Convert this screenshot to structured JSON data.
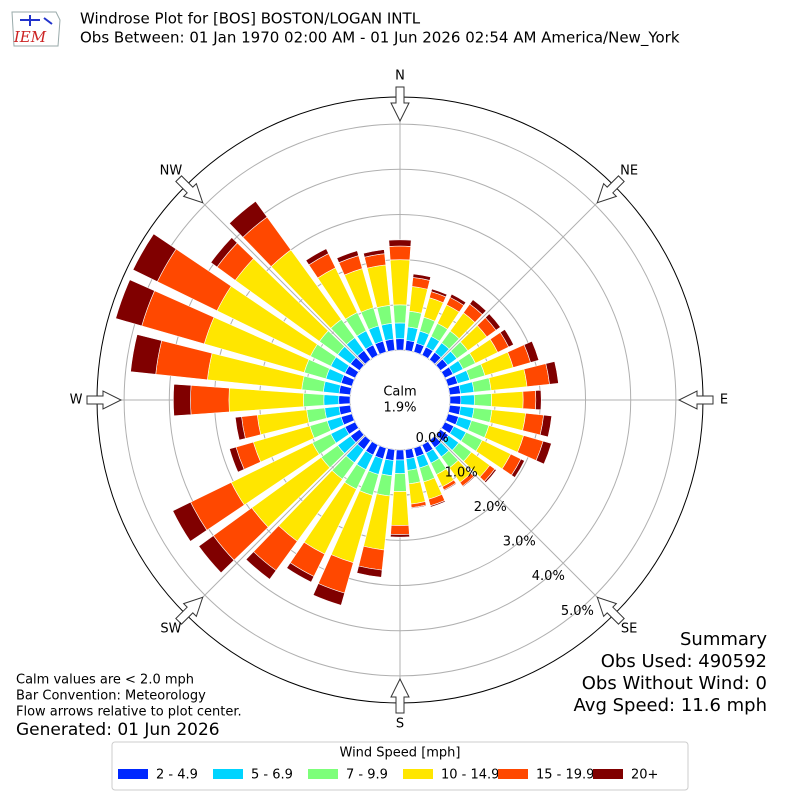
{
  "chart_data": {
    "type": "windrose",
    "title": "Windrose Plot for [BOS] BOSTON/LOGAN INTL",
    "subtitle": "Obs Between: 01 Jan 1970 02:00 AM - 01 Jun 2026 02:54 AM America/New_York",
    "logo_text": "IEM",
    "direction_labels": [
      "N",
      "NE",
      "E",
      "SE",
      "S",
      "SW",
      "W",
      "NW"
    ],
    "x": [
      0,
      10,
      20,
      30,
      40,
      50,
      60,
      70,
      80,
      90,
      100,
      110,
      120,
      130,
      140,
      150,
      160,
      170,
      180,
      190,
      200,
      210,
      220,
      230,
      240,
      250,
      260,
      270,
      280,
      290,
      300,
      310,
      320,
      330,
      340,
      350
    ],
    "rlim": [
      0,
      5.6
    ],
    "rticks": [
      {
        "value": 0,
        "label": "0.0%"
      },
      {
        "value": 1,
        "label": "1.0%"
      },
      {
        "value": 2,
        "label": "2.0%"
      },
      {
        "value": 3,
        "label": "3.0%"
      },
      {
        "value": 4,
        "label": "4.0%"
      },
      {
        "value": 5,
        "label": "5.0%"
      }
    ],
    "grid": true,
    "calm_label": "Calm",
    "calm_value": "1.9%",
    "legend_title": "Wind Speed [mph]",
    "legend_position": "bottom",
    "series": [
      {
        "name": "2 - 4.9",
        "color": "#0028ff",
        "values": [
          0.25,
          0.22,
          0.2,
          0.2,
          0.2,
          0.2,
          0.2,
          0.22,
          0.24,
          0.24,
          0.24,
          0.24,
          0.22,
          0.22,
          0.2,
          0.2,
          0.2,
          0.2,
          0.22,
          0.24,
          0.25,
          0.25,
          0.25,
          0.25,
          0.25,
          0.25,
          0.25,
          0.25,
          0.25,
          0.25,
          0.25,
          0.25,
          0.25,
          0.25,
          0.25,
          0.25
        ]
      },
      {
        "name": "5 - 6.9",
        "color": "#00d4ff",
        "values": [
          0.35,
          0.3,
          0.28,
          0.26,
          0.26,
          0.25,
          0.25,
          0.28,
          0.3,
          0.3,
          0.3,
          0.3,
          0.3,
          0.28,
          0.25,
          0.25,
          0.26,
          0.26,
          0.3,
          0.34,
          0.36,
          0.36,
          0.36,
          0.35,
          0.35,
          0.32,
          0.32,
          0.33,
          0.35,
          0.35,
          0.35,
          0.35,
          0.35,
          0.35,
          0.35,
          0.35
        ]
      },
      {
        "name": "7 - 9.9",
        "color": "#7dff7a",
        "values": [
          0.4,
          0.35,
          0.32,
          0.32,
          0.32,
          0.3,
          0.3,
          0.35,
          0.38,
          0.38,
          0.4,
          0.4,
          0.4,
          0.35,
          0.3,
          0.28,
          0.32,
          0.3,
          0.4,
          0.45,
          0.48,
          0.48,
          0.45,
          0.45,
          0.45,
          0.4,
          0.4,
          0.45,
          0.48,
          0.5,
          0.5,
          0.5,
          0.5,
          0.45,
          0.42,
          0.4
        ]
      },
      {
        "name": "10 - 14.9",
        "color": "#ffe600",
        "values": [
          1.0,
          0.55,
          0.45,
          0.46,
          0.5,
          0.52,
          0.55,
          0.65,
          0.8,
          0.7,
          0.75,
          0.8,
          0.7,
          0.5,
          0.4,
          0.3,
          0.4,
          0.45,
          0.75,
          1.2,
          1.55,
          1.6,
          1.7,
          1.9,
          2.0,
          1.3,
          1.1,
          1.65,
          2.1,
          2.3,
          2.3,
          2.3,
          1.9,
          1.1,
          0.9,
          0.9
        ]
      },
      {
        "name": "15 - 19.9",
        "color": "#ff4800",
        "values": [
          0.3,
          0.2,
          0.14,
          0.18,
          0.24,
          0.25,
          0.27,
          0.4,
          0.5,
          0.28,
          0.4,
          0.45,
          0.25,
          0.14,
          0.1,
          0.08,
          0.15,
          0.08,
          0.2,
          0.45,
          0.7,
          0.55,
          0.8,
          1.05,
          1.0,
          0.4,
          0.35,
          0.85,
          1.15,
          1.44,
          1.47,
          0.5,
          0.9,
          0.35,
          0.3,
          0.25
        ]
      },
      {
        "name": "20+",
        "color": "#800000",
        "values": [
          0.14,
          0.08,
          0.06,
          0.08,
          0.12,
          0.12,
          0.12,
          0.19,
          0.2,
          0.12,
          0.18,
          0.19,
          0.09,
          0.04,
          0.02,
          0.02,
          0.03,
          0.02,
          0.06,
          0.16,
          0.28,
          0.14,
          0.24,
          0.4,
          0.44,
          0.15,
          0.14,
          0.38,
          0.56,
          0.6,
          0.6,
          0.17,
          0.43,
          0.12,
          0.11,
          0.09
        ]
      }
    ],
    "notes": [
      "Calm values are < 2.0 mph",
      "Bar Convention: Meteorology",
      "Flow arrows relative to plot center."
    ],
    "generated": "Generated: 01 Jun 2026",
    "summary": [
      "Summary",
      "Obs Used: 490592",
      "Obs Without Wind: 0",
      "Avg Speed: 11.6 mph"
    ]
  }
}
